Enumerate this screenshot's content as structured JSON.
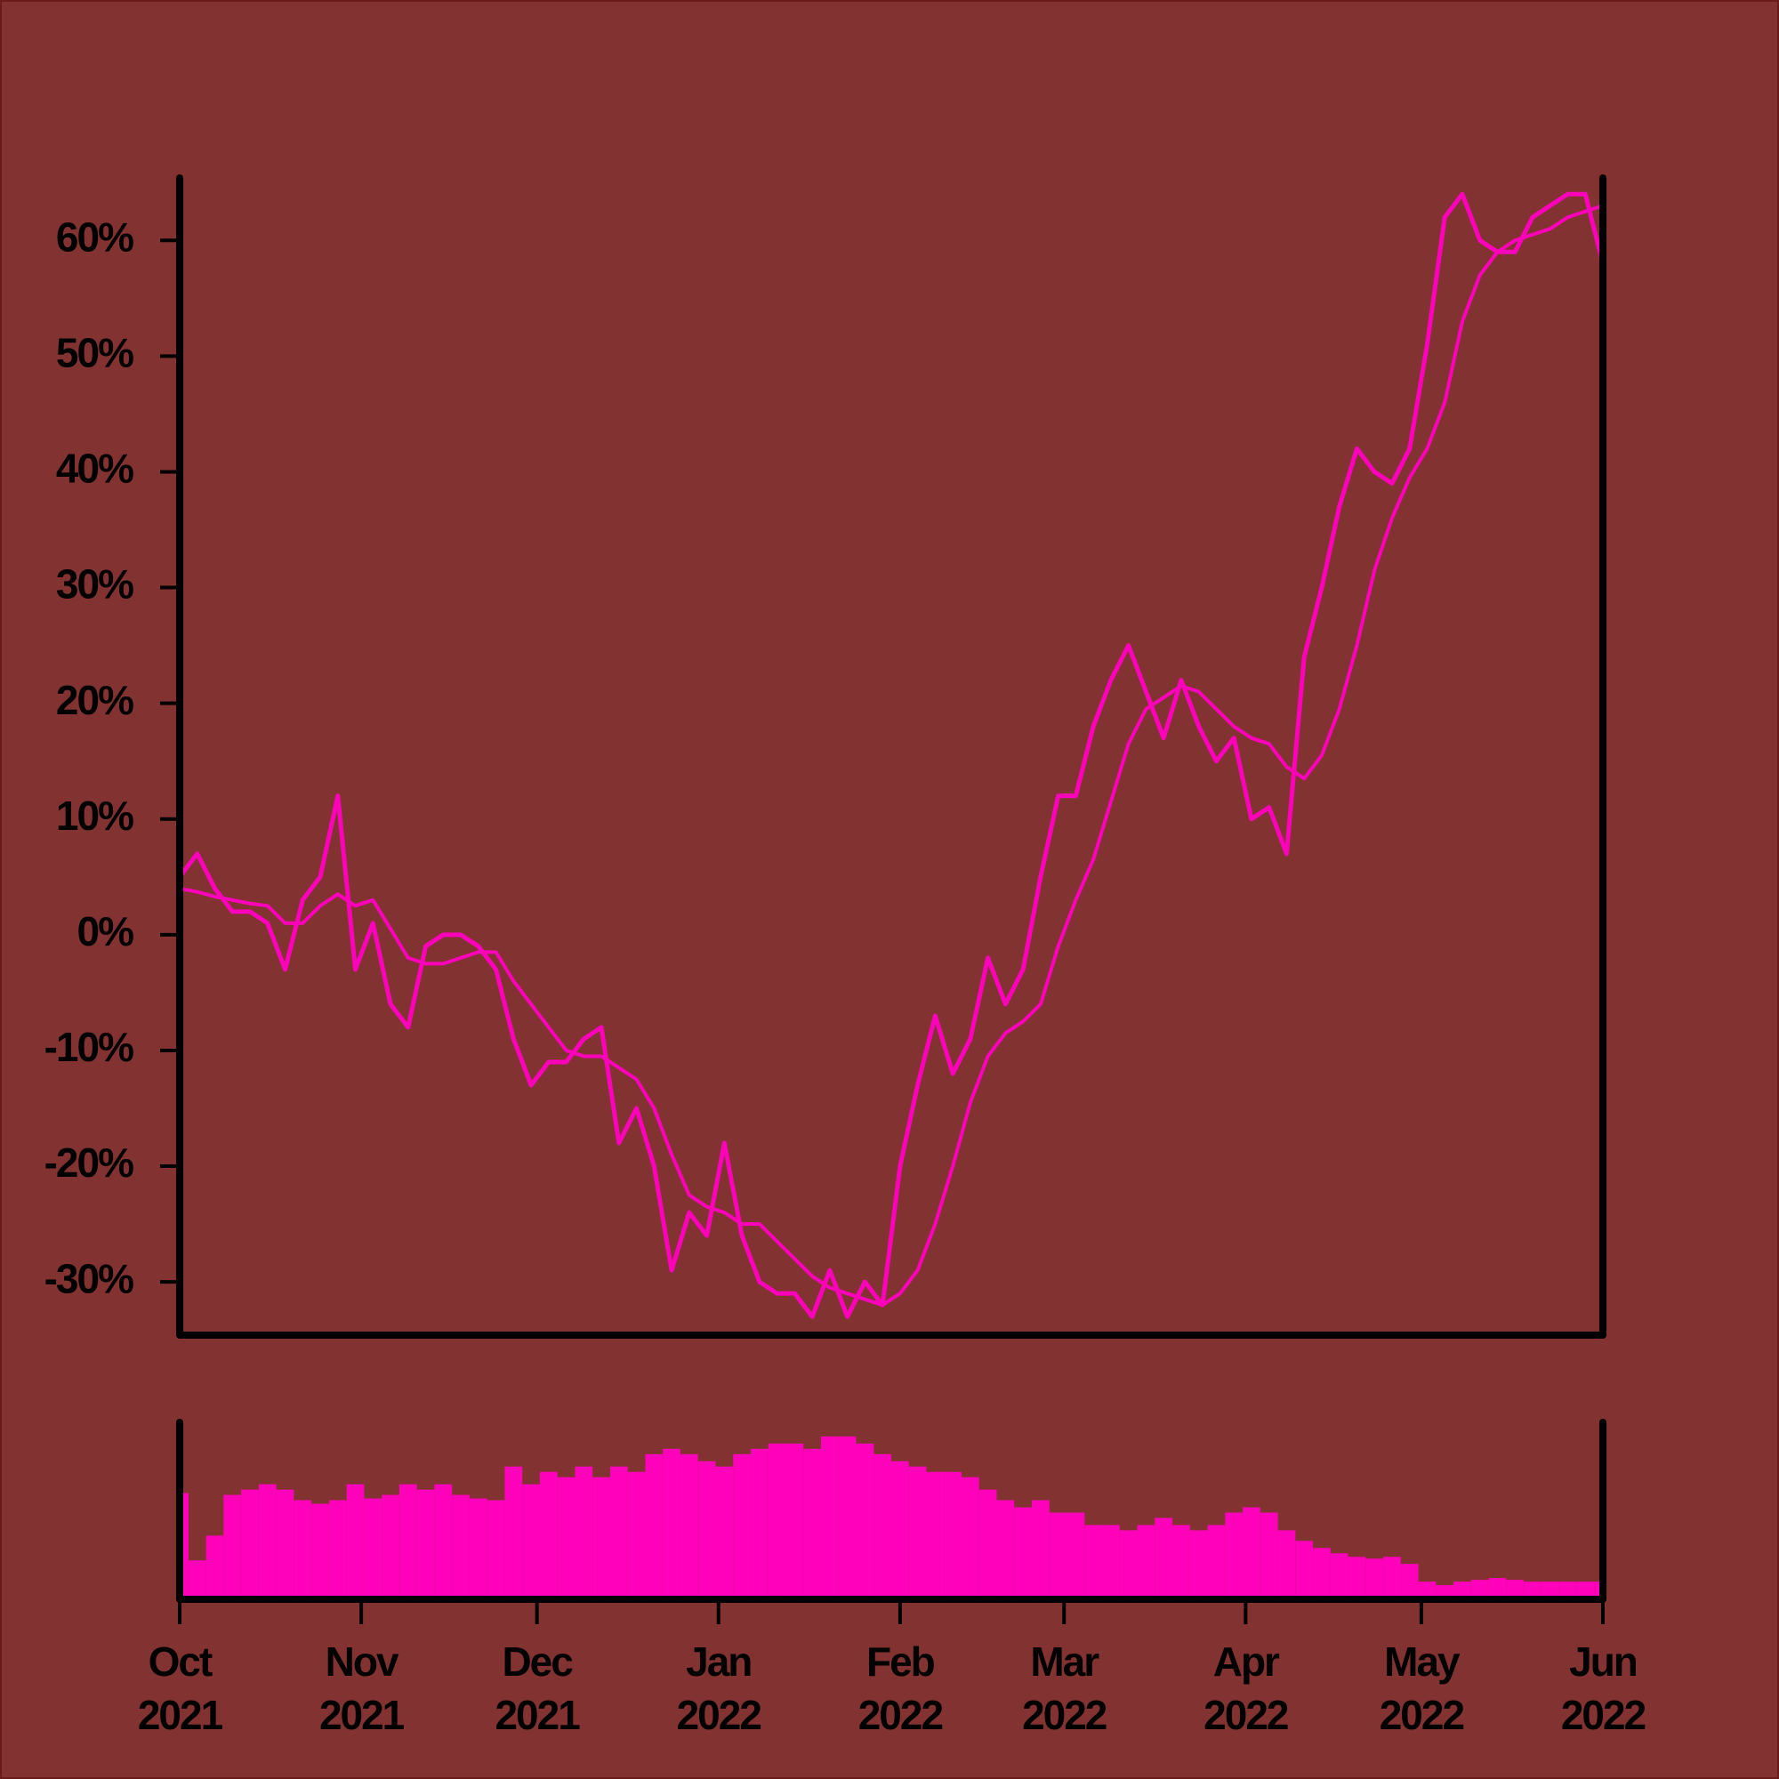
{
  "chart_data": [
    {
      "type": "line",
      "x": [
        0,
        3,
        6,
        9,
        12,
        15,
        18,
        21,
        24,
        27,
        30,
        33,
        36,
        39,
        42,
        45,
        48,
        51,
        54,
        57,
        60,
        63,
        66,
        69,
        72,
        75,
        78,
        81,
        84,
        87,
        90,
        93,
        96,
        99,
        102,
        105,
        108,
        111,
        114,
        117,
        120,
        123,
        126,
        129,
        132,
        135,
        138,
        141,
        144,
        147,
        150,
        153,
        156,
        159,
        162,
        165,
        168,
        171,
        174,
        177,
        180,
        183,
        186,
        189,
        192,
        195,
        198,
        201,
        204,
        207,
        210,
        213,
        216,
        219,
        222,
        225,
        228,
        231,
        234,
        237,
        240,
        243
      ],
      "series": [
        {
          "color": "#ff00bb",
          "values": [
            5,
            7,
            4,
            2,
            2,
            1,
            -3,
            3,
            5,
            12,
            -3,
            1,
            -6,
            -8,
            -1,
            0,
            0,
            -1,
            -3,
            -9,
            -13,
            -11,
            -11,
            -9,
            -8,
            -18,
            -15,
            -20,
            -29,
            -24,
            -26,
            -18,
            -26,
            -30,
            -31,
            -31,
            -33,
            -29,
            -33,
            -30,
            -32,
            -20,
            -13,
            -7,
            -12,
            -9,
            -2,
            -6,
            -3,
            5,
            12,
            12,
            18,
            22,
            25,
            21,
            17,
            22,
            18,
            15,
            17,
            10,
            11,
            7,
            24,
            30,
            37,
            42,
            40,
            39,
            42,
            51,
            62,
            64,
            60,
            59,
            59,
            62,
            63,
            64,
            64,
            58
          ]
        },
        {
          "color": "#ff00bb",
          "values": [
            4,
            3.7,
            3.3,
            3,
            2.7,
            2.5,
            1,
            1,
            2.5,
            3.5,
            2.5,
            3,
            0.5,
            -2,
            -2.5,
            -2.5,
            -2,
            -1.5,
            -1.5,
            -4,
            -6,
            -8,
            -10,
            -10.5,
            -10.5,
            -11.5,
            -12.5,
            -15,
            -19,
            -22.5,
            -23.5,
            -24,
            -25,
            -25,
            -26.5,
            -28,
            -29.5,
            -30.5,
            -31,
            -31.5,
            -32,
            -31,
            -29,
            -25,
            -20,
            -14.5,
            -10.5,
            -8.5,
            -7.5,
            -6,
            -1,
            3,
            6.5,
            11.5,
            16.5,
            19.5,
            20.5,
            21.5,
            21,
            19.5,
            18,
            17,
            16.5,
            14.5,
            13.5,
            15.5,
            19.5,
            25,
            31.5,
            36,
            39.5,
            42,
            46,
            53,
            57,
            59,
            60,
            60.5,
            61,
            62,
            62.5,
            63
          ]
        }
      ],
      "xlim": [
        0,
        243
      ],
      "ylim": [
        -34.6,
        65.4
      ],
      "yticks": [
        {
          "value": -30,
          "label": "-30%"
        },
        {
          "value": -20,
          "label": "-20%"
        },
        {
          "value": -10,
          "label": "-10%"
        },
        {
          "value": 0,
          "label": "0%"
        },
        {
          "value": 10,
          "label": "10%"
        },
        {
          "value": 20,
          "label": "20%"
        },
        {
          "value": 30,
          "label": "30%"
        },
        {
          "value": 40,
          "label": "40%"
        },
        {
          "value": 50,
          "label": "50%"
        },
        {
          "value": 60,
          "label": "60%"
        }
      ]
    },
    {
      "type": "bar",
      "x": [
        0,
        3,
        6,
        9,
        12,
        15,
        18,
        21,
        24,
        27,
        30,
        33,
        36,
        39,
        42,
        45,
        48,
        51,
        54,
        57,
        60,
        63,
        66,
        69,
        72,
        75,
        78,
        81,
        84,
        87,
        90,
        93,
        96,
        99,
        102,
        105,
        108,
        111,
        114,
        117,
        120,
        123,
        126,
        129,
        132,
        135,
        138,
        141,
        144,
        147,
        150,
        153,
        156,
        159,
        162,
        165,
        168,
        171,
        174,
        177,
        180,
        183,
        186,
        189,
        192,
        195,
        198,
        201,
        204,
        207,
        210,
        213,
        216,
        219,
        222,
        225,
        228,
        231,
        234,
        237,
        240,
        243
      ],
      "color": "#ff00bb",
      "values": [
        60,
        22,
        36,
        59,
        62,
        65,
        62,
        56,
        54,
        56,
        65,
        57,
        59,
        65,
        62,
        65,
        59,
        57,
        56,
        75,
        65,
        72,
        69,
        75,
        69,
        75,
        72,
        82,
        85,
        82,
        78,
        75,
        82,
        85,
        88,
        88,
        85,
        92,
        92,
        88,
        82,
        78,
        75,
        72,
        72,
        69,
        62,
        56,
        52,
        56,
        49,
        49,
        42,
        42,
        39,
        42,
        46,
        42,
        39,
        42,
        49,
        52,
        49,
        39,
        33,
        29,
        26,
        24,
        23,
        24,
        20,
        10,
        8,
        10,
        11,
        12,
        11,
        10,
        10,
        10,
        10,
        10
      ],
      "xlim": [
        0,
        243
      ],
      "ylim": [
        0,
        100
      ],
      "xticks": [
        {
          "value": 0,
          "label": "Oct\n2021"
        },
        {
          "value": 31,
          "label": "Nov\n2021"
        },
        {
          "value": 61,
          "label": "Dec\n2021"
        },
        {
          "value": 92,
          "label": "Jan\n2022"
        },
        {
          "value": 123,
          "label": "Feb\n2022"
        },
        {
          "value": 151,
          "label": "Mar\n2022"
        },
        {
          "value": 182,
          "label": "Apr\n2022"
        },
        {
          "value": 212,
          "label": "May\n2022"
        },
        {
          "value": 243,
          "label": "Jun\n2022"
        }
      ]
    }
  ]
}
